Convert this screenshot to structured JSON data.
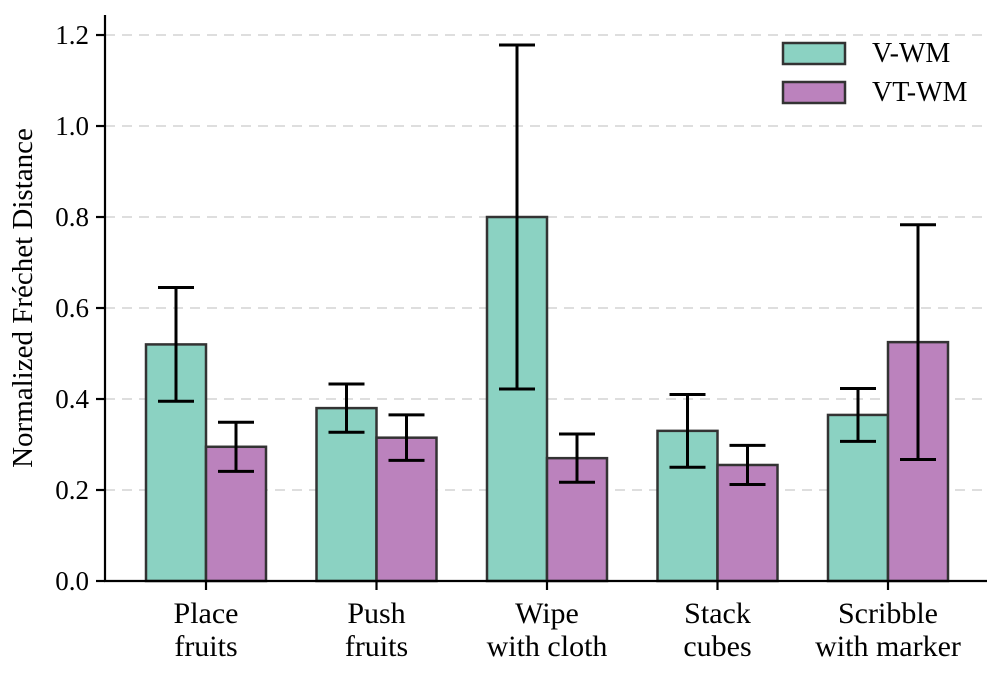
{
  "chart_data": {
    "type": "bar",
    "title": "",
    "xlabel": "",
    "ylabel": "Normalized Fréchet Distance",
    "categories": [
      "Place\nfruits",
      "Push\nfruits",
      "Wipe\nwith cloth",
      "Stack\ncubes",
      "Scribble\nwith marker"
    ],
    "series": [
      {
        "name": "V-WM",
        "color": "#8bd2c2",
        "values": [
          0.52,
          0.38,
          0.8,
          0.33,
          0.365
        ],
        "errors": [
          0.125,
          0.053,
          0.378,
          0.08,
          0.058
        ]
      },
      {
        "name": "VT-WM",
        "color": "#bb82bd",
        "values": [
          0.295,
          0.315,
          0.27,
          0.255,
          0.525
        ],
        "errors": [
          0.054,
          0.05,
          0.053,
          0.043,
          0.258
        ]
      }
    ],
    "ylim": [
      0,
      1.244
    ],
    "yticks": [
      0.0,
      0.2,
      0.4,
      0.6,
      0.8,
      1.0,
      1.2
    ],
    "ytick_format_decimals": 1,
    "grid": "horizontal-dashed",
    "grid_color": "#d9d9d9",
    "legend_position": "upper-right",
    "legend_frame": false,
    "bar_edge_color": "#333333",
    "error_bar_color": "#000000",
    "axis_color": "#000000",
    "background_color": "#ffffff"
  }
}
